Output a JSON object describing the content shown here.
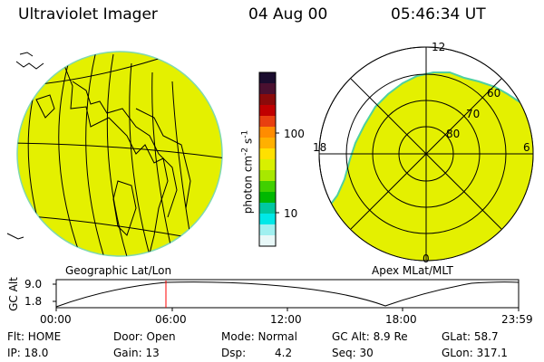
{
  "header": {
    "title": "Ultraviolet Imager",
    "date": "04 Aug 00",
    "time": "05:46:34 UT"
  },
  "colorbar": {
    "label": "photon cm",
    "label_exp": "-2",
    "label_unit": "s",
    "label_unit_exp": "-1",
    "ticks": [
      "100",
      "10"
    ],
    "colors_top_to_bottom": [
      "#1a0c2e",
      "#4a1030",
      "#8b0a0a",
      "#c00000",
      "#e84010",
      "#ff8c00",
      "#ffb000",
      "#ffe000",
      "#d8f000",
      "#a8e800",
      "#40d000",
      "#00b800",
      "#00c8a0",
      "#00e8e8",
      "#a0f0f0",
      "#e8f8f8"
    ]
  },
  "left_panel": {
    "label": "Geographic Lat/Lon",
    "fill_color": "#e4f000"
  },
  "right_panel": {
    "label": "Apex MLat/MLT",
    "fill_color": "#e4f000",
    "lat_labels": [
      "60",
      "70",
      "80"
    ],
    "mlt_labels": [
      "12",
      "18",
      "6",
      "0"
    ]
  },
  "altitude_plot": {
    "ylabel": "GC Alt",
    "ymax": "9.0",
    "ymin": "1.8",
    "xticks": [
      "00:00",
      "06:00",
      "12:00",
      "18:00",
      "23:59"
    ],
    "cursor_color": "#ff0000"
  },
  "status": {
    "flt": "Flt: HOME",
    "ip": "IP: 18.0",
    "door": "Door: Open",
    "gain": "Gain: 13",
    "mode": "Mode: Normal",
    "dsp_label": "Dsp:",
    "dsp_value": "4.2",
    "gc_alt": "GC Alt: 8.9 Re",
    "seq": "Seq: 30",
    "glat": "GLat: 58.7",
    "glon": "GLon: 317.1"
  }
}
